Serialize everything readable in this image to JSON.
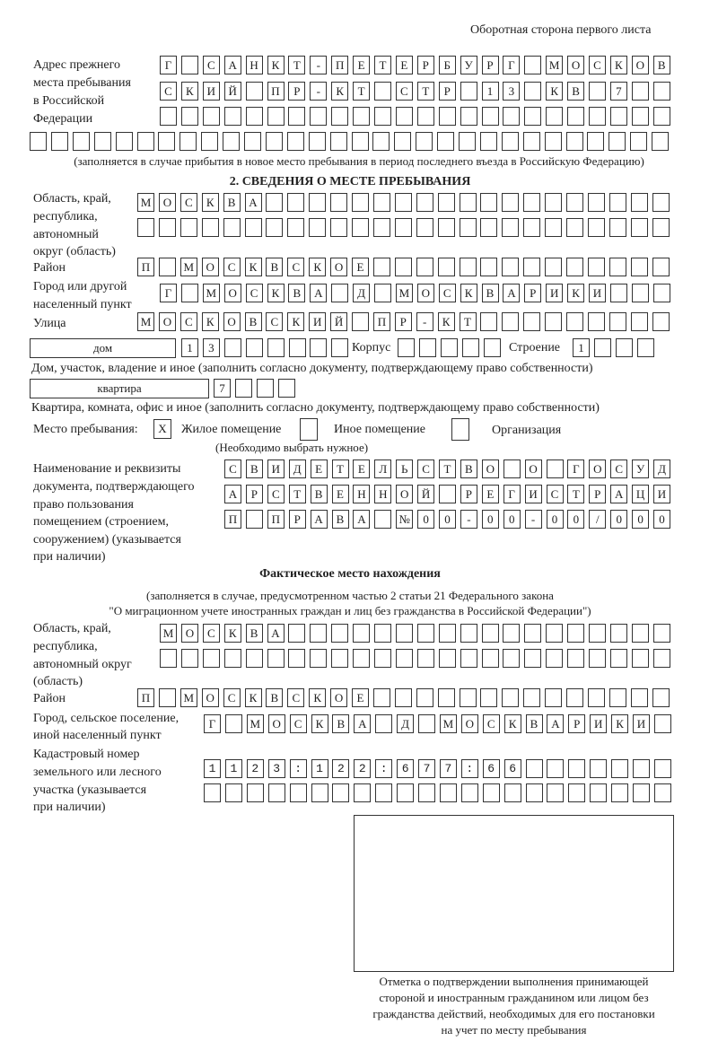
{
  "header": "Оборотная сторона первого листа",
  "prev_address": {
    "label": [
      "Адрес прежнего",
      "места пребывания",
      "в Российской",
      "Федерации"
    ],
    "rows": [
      "Г САНКТ-ПЕТЕРБУРГ МОСКОВ",
      "СКИЙ ПР-КТ СТР 13 КВ 7  ",
      "                        ",
      "                              "
    ],
    "note": "(заполняется в случае прибытия в новое место пребывания в период последнего въезда в Российскую Федерацию)"
  },
  "section2": {
    "title": "2. СВЕДЕНИЯ О МЕСТЕ ПРЕБЫВАНИЯ",
    "region_label": [
      "Область, край,",
      "республика,",
      "автономный",
      "округ (область)"
    ],
    "region_rows": [
      "МОСКВА                   ",
      "                         "
    ],
    "district_label": "Район",
    "district": "П МОСКВСКОЕ              ",
    "city_label": [
      "Город или другой",
      "населенный пункт"
    ],
    "city": "Г МОСКВА Д МОСКВАРИКИ   ",
    "street_label": "Улица",
    "street": "МОСКОВСКИЙ ПР-КТ         ",
    "house_type": "дом",
    "house": "13      ",
    "korpus_label": "Корпус",
    "korpus": "     ",
    "stroenie_label": "Строение",
    "stroenie": "1   ",
    "house_note": "Дом, участок, владение и иное (заполнить согласно документу, подтверждающему право собственности)",
    "flat_type": "квартира",
    "flat": "7   ",
    "flat_note": "Квартира, комната, офис и иное (заполнить согласно документу, подтверждающему право собственности)",
    "stay_label": "Место пребывания:",
    "stay_options": [
      {
        "label": "Жилое помещение",
        "mark": "X",
        "checked": true
      },
      {
        "label": "Иное помещение",
        "mark": "",
        "checked": false
      },
      {
        "label": "Организация",
        "mark": "",
        "checked": false
      }
    ],
    "stay_note": "(Необходимо выбрать нужное)",
    "doc_label": [
      "Наименование и реквизиты",
      "документа, подтверждающего",
      "право пользования",
      "помещением (строением,",
      "сооружением) (указывается",
      "при наличии)"
    ],
    "doc_rows": [
      "СВИДЕТЕЛЬСТВО О ГОСУД",
      "АРСТВЕННОЙ РЕГИСТРАЦИ",
      "П ПРАВА №00-00-00/000"
    ]
  },
  "actual": {
    "title": "Фактическое место нахождения",
    "note": [
      "(заполняется в случае, предусмотренном частью 2 статьи 21 Федерального закона",
      "\"О миграционном учете иностранных граждан и лиц без гражданства в Российской Федерации\")"
    ],
    "region_label": [
      "Область, край,",
      "республика,",
      "автономный округ",
      "(область)"
    ],
    "region_rows": [
      "МОСКВА                  ",
      "                        "
    ],
    "district_label": "Район",
    "district": "П МОСКВСКОЕ              ",
    "city_label": [
      "Город, сельское поселение,",
      "иной населенный пункт"
    ],
    "city": "Г МОСКВА Д МОСКВАРИКИ ",
    "cadastral_label": [
      "Кадастровый номер",
      "земельного или лесного",
      "участка (указывается",
      "при наличии)"
    ],
    "cadastral_rows": [
      "1123:122:677:66       ",
      "                      "
    ]
  },
  "stamp": {
    "caption": [
      "Отметка о подтверждении выполнения принимающей",
      "стороной и иностранным гражданином или лицом без",
      "гражданства действий, необходимых для его постановки",
      "на учет по месту пребывания"
    ]
  }
}
